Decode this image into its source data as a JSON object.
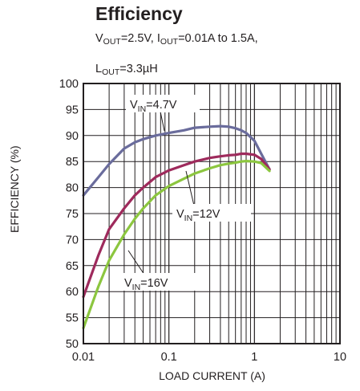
{
  "title": "Efficiency",
  "subtitle_line1": {
    "vout": "V",
    "vout_sub": "OUT",
    "vout_val": "=2.5V, I",
    "iout_sub": "OUT",
    "iout_val": "=0.01A to 1.5A,"
  },
  "subtitle_line2": {
    "l": "L",
    "l_sub": "OUT",
    "l_val": "=3.3µH"
  },
  "chart_data": {
    "type": "line",
    "xlabel": "LOAD CURRENT (A)",
    "ylabel": "EFFICIENCY (%)",
    "xscale": "log",
    "xlim": [
      0.01,
      10
    ],
    "ylim": [
      50,
      100
    ],
    "xticks": [
      "0.01",
      "0.1",
      "1",
      "10"
    ],
    "yticks": [
      "50",
      "55",
      "60",
      "65",
      "70",
      "75",
      "80",
      "85",
      "90",
      "95",
      "100"
    ],
    "grid": true,
    "series": [
      {
        "name": "VIN=4.7V",
        "label_main": "V",
        "label_sub": "IN",
        "label_rest": "=4.7V",
        "color": "#6a6c9c",
        "x": [
          0.01,
          0.015,
          0.02,
          0.03,
          0.04,
          0.05,
          0.07,
          0.1,
          0.15,
          0.2,
          0.3,
          0.4,
          0.5,
          0.6,
          0.7,
          0.8,
          1.0,
          1.2,
          1.5
        ],
        "y": [
          78.5,
          82.0,
          84.5,
          87.5,
          88.7,
          89.3,
          90.0,
          90.5,
          91.0,
          91.5,
          91.7,
          91.8,
          91.7,
          91.4,
          91.0,
          90.5,
          89.0,
          86.5,
          83.5
        ]
      },
      {
        "name": "VIN=12V",
        "label_main": "V",
        "label_sub": "IN",
        "label_rest": "=12V",
        "color": "#9e2a5c",
        "x": [
          0.01,
          0.015,
          0.02,
          0.03,
          0.04,
          0.05,
          0.07,
          0.1,
          0.15,
          0.2,
          0.3,
          0.4,
          0.5,
          0.6,
          0.7,
          0.8,
          1.0,
          1.2,
          1.5
        ],
        "y": [
          59.0,
          67.0,
          72.0,
          76.0,
          78.5,
          80.0,
          82.0,
          83.3,
          84.3,
          85.0,
          85.7,
          86.0,
          86.2,
          86.3,
          86.5,
          86.5,
          86.3,
          85.5,
          83.5
        ]
      },
      {
        "name": "VIN=16V",
        "label_main": "V",
        "label_sub": "IN",
        "label_rest": "=16V",
        "color": "#8cc63f",
        "x": [
          0.01,
          0.015,
          0.02,
          0.03,
          0.04,
          0.05,
          0.07,
          0.1,
          0.15,
          0.2,
          0.3,
          0.4,
          0.5,
          0.6,
          0.7,
          0.8,
          1.0,
          1.2,
          1.5
        ],
        "y": [
          53.0,
          61.0,
          66.0,
          71.0,
          74.0,
          76.0,
          78.5,
          80.3,
          81.7,
          82.7,
          83.7,
          84.3,
          84.6,
          84.8,
          85.0,
          85.1,
          85.0,
          84.7,
          83.2
        ]
      }
    ]
  }
}
